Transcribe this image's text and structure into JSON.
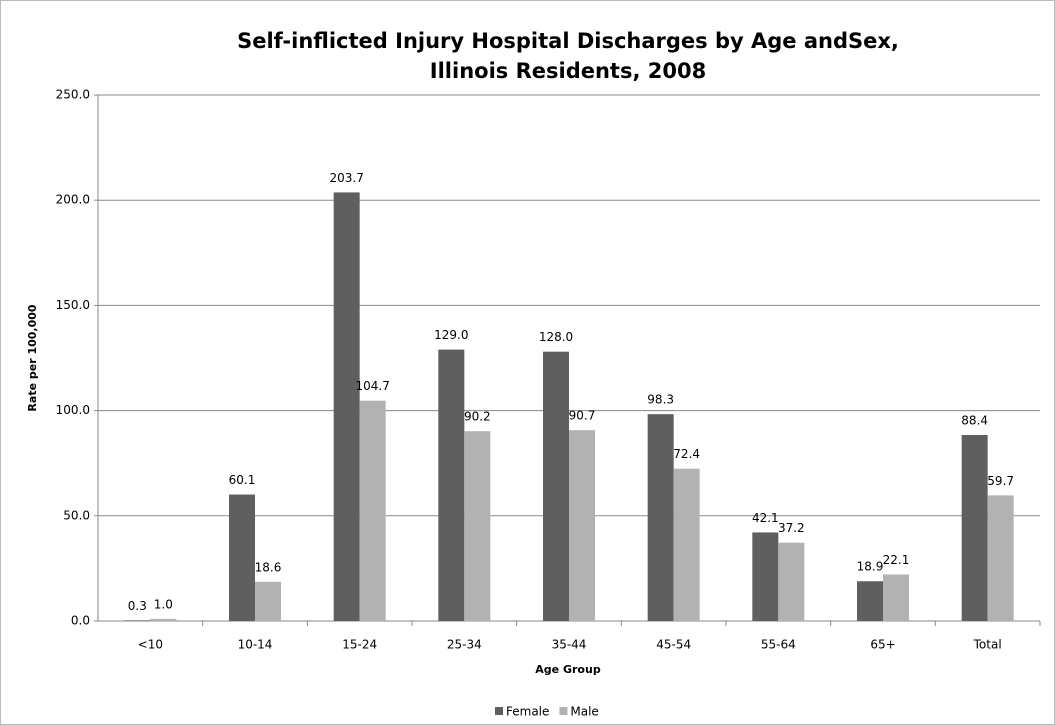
{
  "chart_data": {
    "type": "bar",
    "title": [
      "Self-inflicted Injury Hospital Discharges by Age andSex,",
      "Illinois Residents, 2008"
    ],
    "x_label": "Age Group",
    "y_label": "Rate per 100,000",
    "categories": [
      "<10",
      "10-14",
      "15-24",
      "25-34",
      "35-44",
      "45-54",
      "55-64",
      "65+",
      "Total"
    ],
    "series": [
      {
        "name": "Female",
        "color": "#5f5f5f",
        "values": [
          0.3,
          60.1,
          203.7,
          129.0,
          128.0,
          98.3,
          42.1,
          18.9,
          88.4
        ],
        "value_labels": [
          "0.3",
          "60.1",
          "203.7",
          "129.0",
          "128.0",
          "98.3",
          "42.1",
          "18.9",
          "88.4"
        ]
      },
      {
        "name": "Male",
        "color": "#b2b2b2",
        "values": [
          1.0,
          18.6,
          104.7,
          90.2,
          90.7,
          72.4,
          37.2,
          22.1,
          59.7
        ],
        "value_labels": [
          "1.0",
          "18.6",
          "104.7",
          "90.2",
          "90.7",
          "72.4",
          "37.2",
          "22.1",
          "59.7"
        ]
      }
    ],
    "ylim": [
      0,
      250
    ],
    "yticks": [
      {
        "value": 0,
        "label": "0.0"
      },
      {
        "value": 50,
        "label": "50.0"
      },
      {
        "value": 100,
        "label": "100.0"
      },
      {
        "value": 150,
        "label": "150.0"
      },
      {
        "value": 200,
        "label": "200.0"
      },
      {
        "value": 250,
        "label": "250.0"
      }
    ],
    "grid": true,
    "legend": "bottom"
  }
}
